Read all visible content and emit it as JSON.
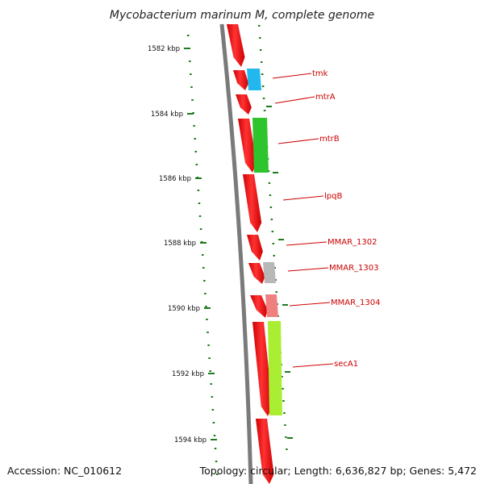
{
  "title": "Mycobacterium marinum M, complete genome",
  "accession": "Accession: NC_010612",
  "summary": "Topology: circular; Length: 6,636,827 bp; Genes: 5,472",
  "ticks": [
    "1582 kbp",
    "1584 kbp",
    "1586 kbp",
    "1588 kbp",
    "1590 kbp",
    "1592 kbp",
    "1594 kbp"
  ],
  "colors": {
    "backbone": "#7a7a7a",
    "tick": "#1d7a1d",
    "forward_strand": "#ff1a1a",
    "label": "#cc0000"
  },
  "genes": [
    {
      "name": "tmk",
      "color": "#22b8ee"
    },
    {
      "name": "mtrA",
      "color": "#ff1a1a"
    },
    {
      "name": "mtrB",
      "color": "#2ec42e"
    },
    {
      "name": "lpqB",
      "color": "#ff1a1a"
    },
    {
      "name": "MMAR_1302",
      "color": "#ff1a1a"
    },
    {
      "name": "MMAR_1303",
      "color": "#b8b8b8"
    },
    {
      "name": "MMAR_1304",
      "color": "#f08080"
    },
    {
      "name": "secA1",
      "color": "#aaee33"
    }
  ]
}
